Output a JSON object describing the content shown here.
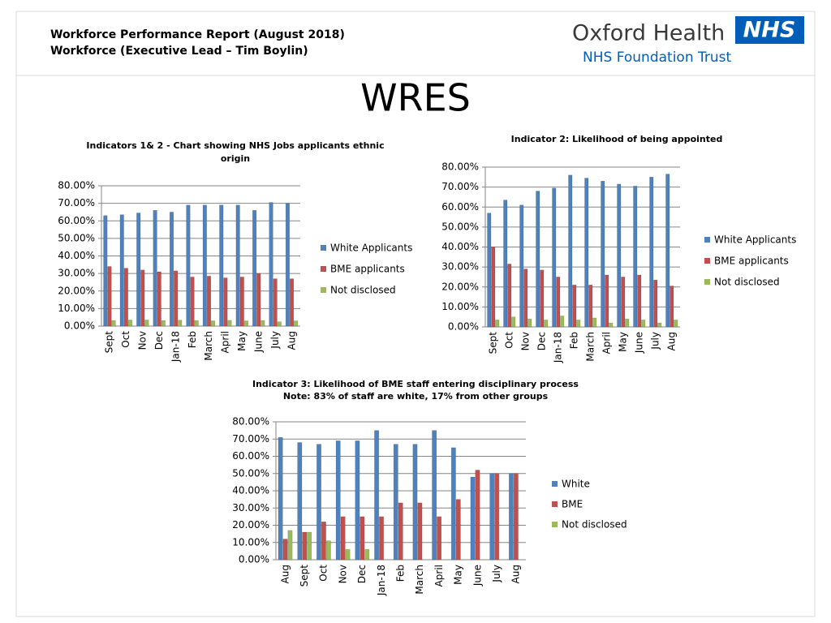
{
  "header": {
    "title": "Workforce Performance Report (August 2018)",
    "subtitle": "Workforce (Executive Lead – Tim Boylin)",
    "org_name": "Oxford Health",
    "org_badge": "NHS",
    "org_sub": "NHS Foundation Trust",
    "heading": "WRES"
  },
  "chart_data": [
    {
      "type": "bar",
      "title": "Indicators 1& 2 - Chart showing NHS Jobs applicants ethnic origin",
      "categories": [
        "Sept",
        "Oct",
        "Nov",
        "Dec",
        "Jan-18",
        "Feb",
        "March",
        "April",
        "May",
        "June",
        "July",
        "Aug"
      ],
      "series": [
        {
          "name": "White Applicants",
          "color": "#4f81bd",
          "values": [
            63,
            63.5,
            64.5,
            66,
            65,
            69,
            69,
            69,
            69,
            66,
            70.5,
            70
          ]
        },
        {
          "name": "BME applicants",
          "color": "#c0504d",
          "values": [
            34,
            33,
            32,
            31,
            31.5,
            28,
            28.5,
            27.5,
            28,
            30,
            27,
            27
          ]
        },
        {
          "name": "Not disclosed",
          "color": "#9bbb59",
          "values": [
            3.2,
            3.5,
            3.5,
            3.2,
            3.4,
            3.2,
            3,
            3.3,
            3,
            3.2,
            2.5,
            3
          ]
        }
      ],
      "ylim": [
        0,
        80
      ],
      "yticks": [
        {
          "value": 0,
          "label": "0.00%"
        },
        {
          "value": 10,
          "label": "10.00%"
        },
        {
          "value": 20,
          "label": "20.00%"
        },
        {
          "value": 30,
          "label": "30.00%"
        },
        {
          "value": 40,
          "label": "40.00%"
        },
        {
          "value": 50,
          "label": "50.00%"
        },
        {
          "value": 60,
          "label": "60.00%"
        },
        {
          "value": 70,
          "label": "70.00%"
        },
        {
          "value": 80,
          "label": "80.00%"
        }
      ],
      "grid": true,
      "legend": "right"
    },
    {
      "type": "bar",
      "title": "Indicator 2: Likelihood of being appointed",
      "categories": [
        "Sept",
        "Oct",
        "Nov",
        "Dec",
        "Jan-18",
        "Feb",
        "March",
        "April",
        "May",
        "June",
        "July",
        "Aug"
      ],
      "series": [
        {
          "name": "White Applicants",
          "color": "#4f81bd",
          "values": [
            57,
            63.5,
            61,
            68,
            69.5,
            76,
            74.5,
            73,
            71.5,
            70.5,
            75,
            76.5
          ]
        },
        {
          "name": "BME applicants",
          "color": "#c0504d",
          "values": [
            40,
            31.5,
            29,
            28.5,
            25,
            21,
            21,
            26,
            25,
            26,
            23.5,
            20.5
          ]
        },
        {
          "name": "Not disclosed",
          "color": "#9bbb59",
          "values": [
            3.5,
            5,
            4,
            3.5,
            5.5,
            3.5,
            4.5,
            2,
            4,
            3.5,
            2,
            3.5
          ]
        }
      ],
      "ylim": [
        0,
        80
      ],
      "yticks": [
        {
          "value": 0,
          "label": "0.00%"
        },
        {
          "value": 10,
          "label": "10.00%"
        },
        {
          "value": 20,
          "label": "20.00%"
        },
        {
          "value": 30,
          "label": "30.00%"
        },
        {
          "value": 40,
          "label": "40.00%"
        },
        {
          "value": 50,
          "label": "50.00%"
        },
        {
          "value": 60,
          "label": "60.00%"
        },
        {
          "value": 70,
          "label": "70.00%"
        },
        {
          "value": 80,
          "label": "80.00%"
        }
      ],
      "grid": true,
      "legend": "right"
    },
    {
      "type": "bar",
      "title": "Indicator 3: Likelihood of BME staff entering disciplinary process",
      "subtitle": "Note: 83% of staff are white, 17% from other groups",
      "categories": [
        "Aug",
        "Sept",
        "Oct",
        "Nov",
        "Dec",
        "Jan-18",
        "Feb",
        "March",
        "April",
        "May",
        "June",
        "July",
        "Aug"
      ],
      "series": [
        {
          "name": "White",
          "color": "#4f81bd",
          "values": [
            71,
            68,
            67,
            69,
            69,
            75,
            67,
            67,
            75,
            65,
            48,
            50,
            50
          ]
        },
        {
          "name": "BME",
          "color": "#c0504d",
          "values": [
            12,
            16,
            22,
            25,
            25,
            25,
            33,
            33,
            25,
            35,
            52,
            50,
            50
          ]
        },
        {
          "name": "Not disclosed",
          "color": "#9bbb59",
          "values": [
            17,
            16,
            11,
            6,
            6,
            0,
            0,
            0,
            0,
            0,
            0,
            0,
            0
          ]
        }
      ],
      "ylim": [
        0,
        80
      ],
      "yticks": [
        {
          "value": 0,
          "label": "0.00%"
        },
        {
          "value": 10,
          "label": "10.00%"
        },
        {
          "value": 20,
          "label": "20.00%"
        },
        {
          "value": 30,
          "label": "30.00%"
        },
        {
          "value": 40,
          "label": "40.00%"
        },
        {
          "value": 50,
          "label": "50.00%"
        },
        {
          "value": 60,
          "label": "60.00%"
        },
        {
          "value": 70,
          "label": "70.00%"
        },
        {
          "value": 80,
          "label": "80.00%"
        }
      ],
      "grid": true,
      "legend": "right"
    }
  ]
}
